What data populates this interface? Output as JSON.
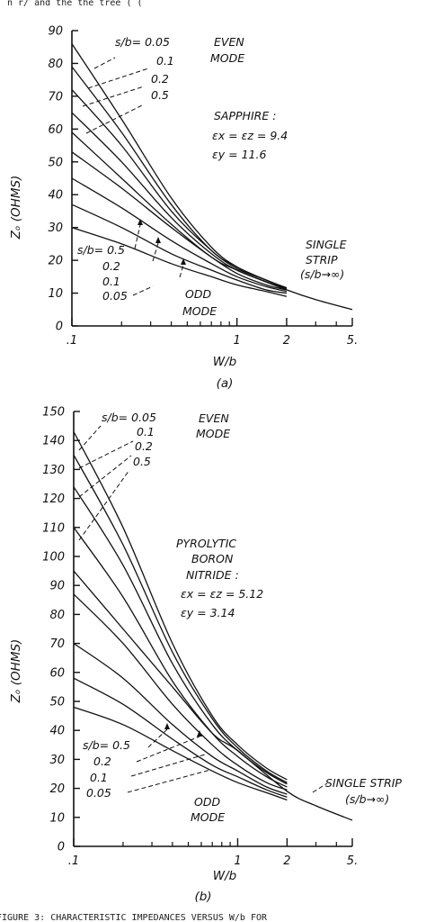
{
  "header_fragment": "n r/ and the the tree ( (",
  "caption": "FIGURE 3: CHARACTERISTIC IMPEDANCES VERSUS W/b FOR",
  "chart_data": [
    {
      "type": "line",
      "panel_label": "(a)",
      "xlabel": "W/b",
      "ylabel": "Zₒ (OHMS)",
      "x_scale": "log",
      "xlim": [
        0.1,
        5
      ],
      "ylim": [
        0,
        90
      ],
      "xticks": [
        0.1,
        1,
        2,
        5
      ],
      "xtick_labels": [
        ".1",
        "1",
        "2",
        "5."
      ],
      "yticks": [
        0,
        10,
        20,
        30,
        40,
        50,
        60,
        70,
        80,
        90
      ],
      "ytick_labels": [
        "0",
        "10",
        "20",
        "30",
        "40",
        "50",
        "60",
        "70",
        "80",
        "90"
      ],
      "material": [
        "SAPPHIRE :",
        "εx = εz = 9.4",
        "εy = 11.6"
      ],
      "even_mode_label": [
        "EVEN",
        "MODE"
      ],
      "odd_mode_label": [
        "ODD",
        "MODE"
      ],
      "single_label": [
        "SINGLE",
        "STRIP",
        "(s/b→∞)"
      ],
      "even_legend": [
        "s/b= 0.05",
        "0.1",
        "0.2",
        "0.5"
      ],
      "odd_legend": [
        "s/b= 0.5",
        "0.2",
        "0.1",
        "0.05"
      ],
      "single_strip": {
        "x": [
          0.1,
          0.2,
          0.4,
          0.7,
          1,
          2,
          3,
          5
        ],
        "y": [
          59,
          45,
          31,
          21,
          17,
          11,
          8,
          5
        ]
      },
      "even": [
        {
          "s_over_b": "0.05",
          "x": [
            0.1,
            0.2,
            0.4,
            0.7,
            1,
            1.5,
            2
          ],
          "y": [
            86,
            63,
            39,
            24,
            18,
            14,
            11.6
          ]
        },
        {
          "s_over_b": "0.1",
          "x": [
            0.1,
            0.2,
            0.4,
            0.7,
            1,
            1.5,
            2
          ],
          "y": [
            79,
            59,
            37,
            23,
            18,
            14,
            11.6
          ]
        },
        {
          "s_over_b": "0.2",
          "x": [
            0.1,
            0.2,
            0.4,
            0.7,
            1,
            1.5,
            2
          ],
          "y": [
            72,
            55,
            35,
            23,
            17.5,
            14,
            11.5
          ]
        },
        {
          "s_over_b": "0.5",
          "x": [
            0.1,
            0.2,
            0.4,
            0.7,
            1,
            1.5,
            2
          ],
          "y": [
            65,
            50,
            33,
            22,
            17,
            13.5,
            11.3
          ]
        }
      ],
      "odd": [
        {
          "s_over_b": "0.5",
          "x": [
            0.1,
            0.2,
            0.4,
            0.7,
            1,
            1.5,
            2
          ],
          "y": [
            53,
            42,
            30,
            21,
            16,
            12.5,
            11
          ]
        },
        {
          "s_over_b": "0.2",
          "x": [
            0.1,
            0.2,
            0.4,
            0.7,
            1,
            1.5,
            2
          ],
          "y": [
            45,
            36,
            26,
            19,
            15,
            12,
            10.5
          ]
        },
        {
          "s_over_b": "0.1",
          "x": [
            0.1,
            0.2,
            0.4,
            0.7,
            1,
            1.5,
            2
          ],
          "y": [
            37,
            30,
            22,
            17,
            14,
            11,
            10
          ]
        },
        {
          "s_over_b": "0.05",
          "x": [
            0.1,
            0.2,
            0.4,
            0.7,
            1,
            1.5,
            2
          ],
          "y": [
            30,
            25,
            19,
            15,
            12.5,
            10.5,
            9
          ]
        }
      ]
    },
    {
      "type": "line",
      "panel_label": "(b)",
      "xlabel": "W/b",
      "ylabel": "Zₒ (OHMS)",
      "x_scale": "log",
      "xlim": [
        0.1,
        5
      ],
      "ylim": [
        0,
        150
      ],
      "xticks": [
        0.1,
        1,
        2,
        5
      ],
      "xtick_labels": [
        ".1",
        "1",
        "2",
        "5."
      ],
      "yticks": [
        0,
        10,
        20,
        30,
        40,
        50,
        60,
        70,
        80,
        90,
        100,
        110,
        120,
        130,
        140,
        150
      ],
      "ytick_labels": [
        "0",
        "10",
        "20",
        "30",
        "40",
        "50",
        "60",
        "70",
        "80",
        "90",
        "100",
        "110",
        "120",
        "130",
        "140",
        "150"
      ],
      "material": [
        "PYROLYTIC",
        "BORON",
        "NITRIDE :",
        "εx = εz = 5.12",
        "εy = 3.14"
      ],
      "even_mode_label": [
        "EVEN",
        "MODE"
      ],
      "odd_mode_label": [
        "ODD",
        "MODE"
      ],
      "single_label": [
        "SINGLE STRIP",
        "(s/b→∞)"
      ],
      "even_legend": [
        "s/b= 0.05",
        "0.1",
        "0.2",
        "0.5"
      ],
      "odd_legend": [
        "s/b= 0.5",
        "0.2",
        "0.1",
        "0.05"
      ],
      "single_strip": {
        "x": [
          0.1,
          0.2,
          0.4,
          0.7,
          1,
          2,
          3,
          5
        ],
        "y": [
          95,
          75,
          55,
          39,
          33,
          19,
          14,
          9
        ]
      },
      "even": [
        {
          "s_over_b": "0.05",
          "x": [
            0.1,
            0.2,
            0.4,
            0.7,
            1,
            1.5,
            2
          ],
          "y": [
            143,
            110,
            70,
            45,
            35,
            27,
            23
          ]
        },
        {
          "s_over_b": "0.1",
          "x": [
            0.1,
            0.2,
            0.4,
            0.7,
            1,
            1.5,
            2
          ],
          "y": [
            135,
            104,
            67,
            44,
            34,
            26,
            22
          ]
        },
        {
          "s_over_b": "0.2",
          "x": [
            0.1,
            0.2,
            0.4,
            0.7,
            1,
            1.5,
            2
          ],
          "y": [
            124,
            97,
            63,
            42,
            33,
            25.5,
            21.5
          ]
        },
        {
          "s_over_b": "0.5",
          "x": [
            0.1,
            0.2,
            0.4,
            0.7,
            1,
            1.5,
            2
          ],
          "y": [
            110,
            86,
            57,
            39,
            31,
            24,
            20.5
          ]
        }
      ],
      "odd": [
        {
          "s_over_b": "0.5",
          "x": [
            0.1,
            0.2,
            0.4,
            0.7,
            1,
            1.5,
            2
          ],
          "y": [
            87,
            70,
            49,
            35,
            28,
            22,
            19.5
          ]
        },
        {
          "s_over_b": "0.2",
          "x": [
            0.1,
            0.2,
            0.4,
            0.7,
            1,
            1.5,
            2
          ],
          "y": [
            70,
            58,
            42,
            31,
            26,
            20.5,
            18
          ]
        },
        {
          "s_over_b": "0.1",
          "x": [
            0.1,
            0.2,
            0.4,
            0.7,
            1,
            1.5,
            2
          ],
          "y": [
            58,
            49,
            37,
            28,
            24,
            19.5,
            17
          ]
        },
        {
          "s_over_b": "0.05",
          "x": [
            0.1,
            0.2,
            0.4,
            0.7,
            1,
            1.5,
            2
          ],
          "y": [
            48,
            42,
            33,
            26,
            22,
            18.5,
            16
          ]
        }
      ]
    }
  ]
}
